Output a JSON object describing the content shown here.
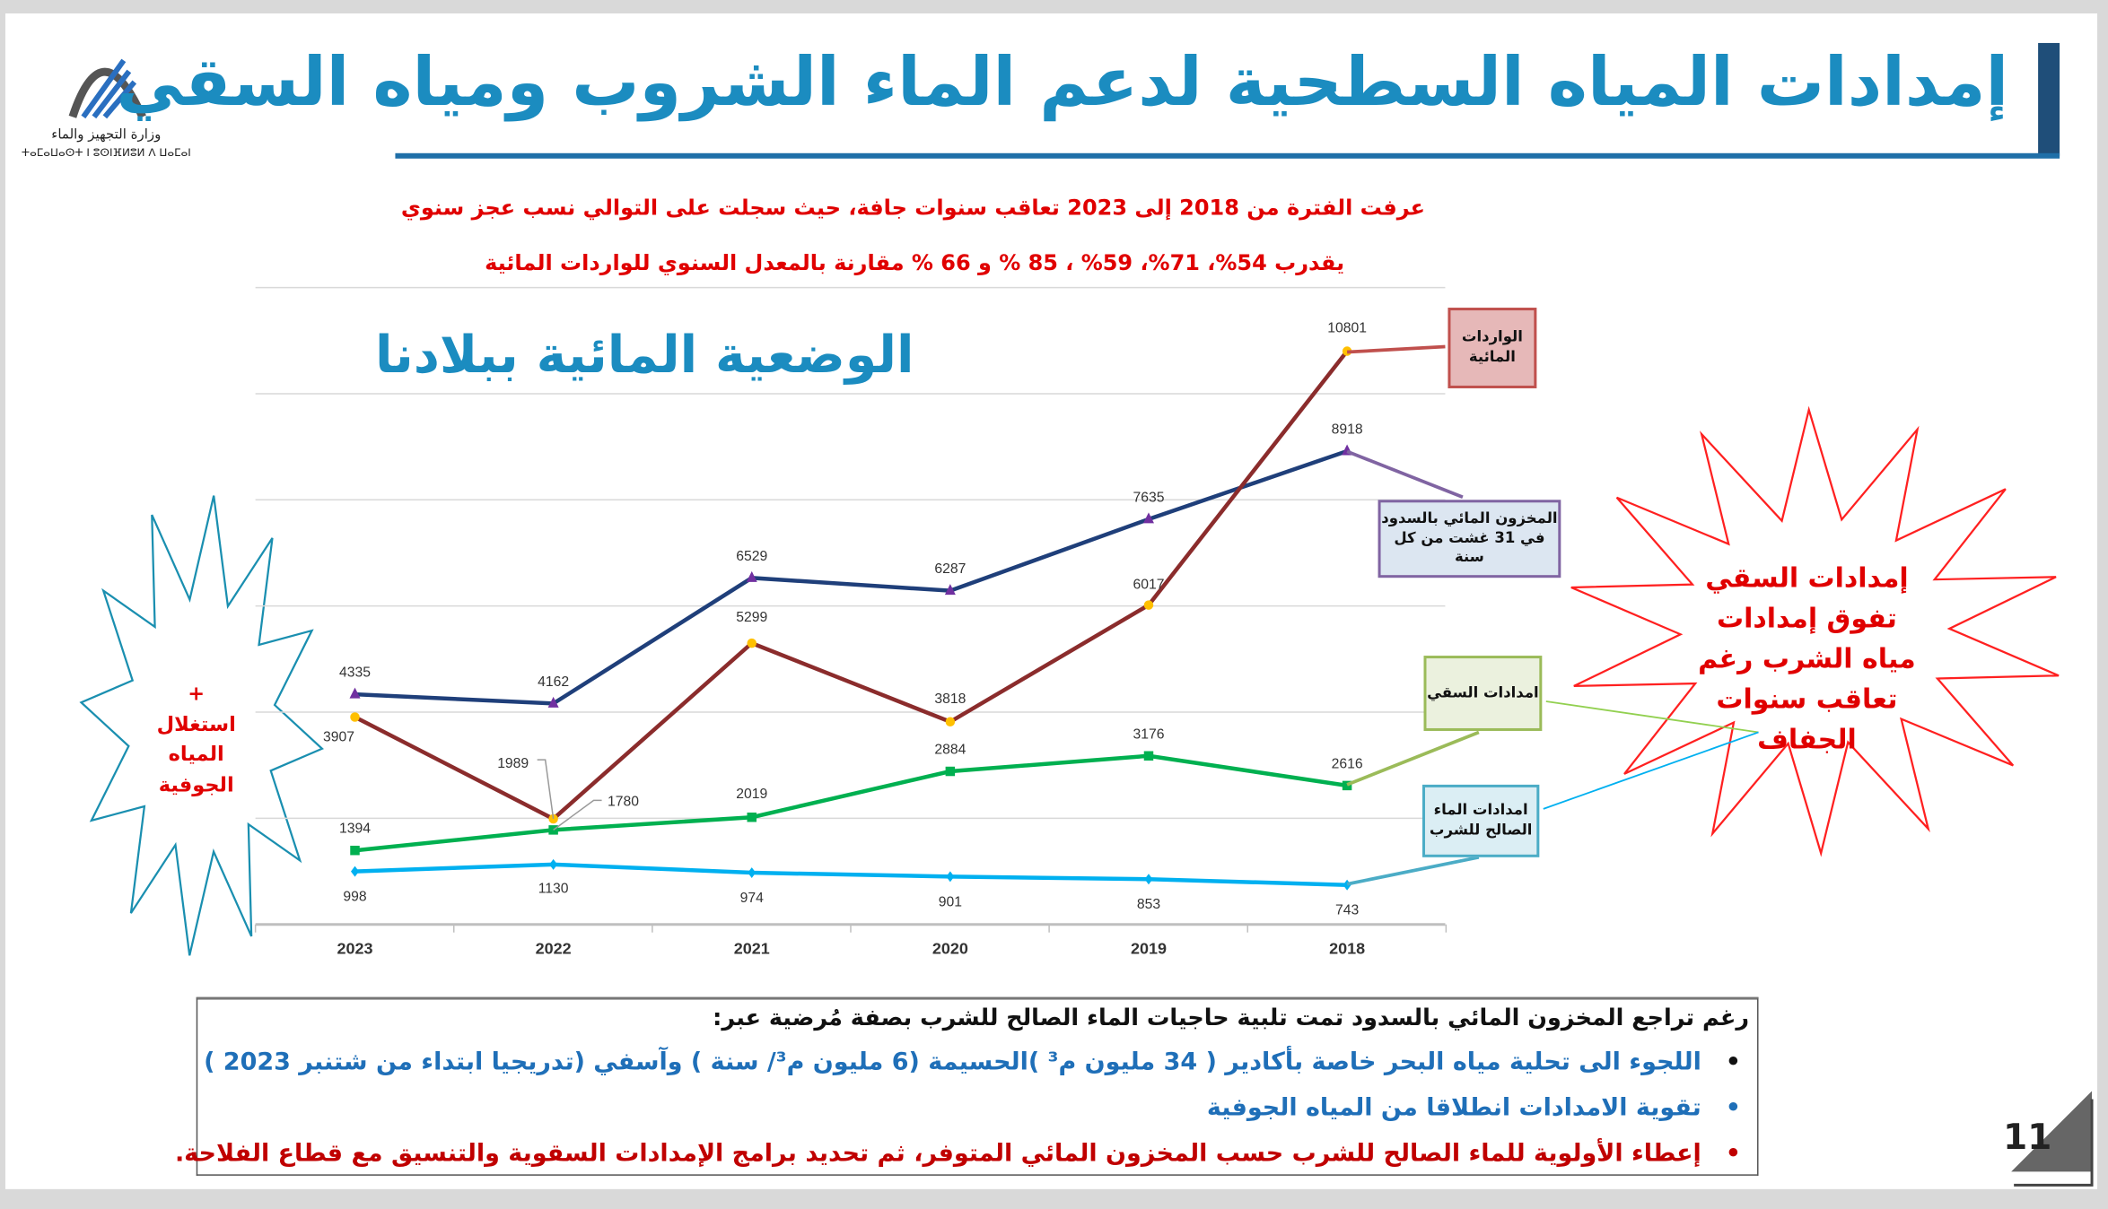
{
  "header": {
    "title": "إمدادات المياه السطحية  لدعم الماء الشروب ومياه السقي",
    "logo_text_ar": "وزارة التجهيز والماء",
    "logo_text_tifinagh": "ⵜⴰⵎⴰⵡⴰⵙⵜ ⵏ ⵓⵙⵏⴼⵍⵓⵍ ⴷ ⵡⴰⵎⴰⵏ"
  },
  "intro": {
    "line1": "عرفت الفترة من 2018 إلى 2023 تعاقب سنوات جافة، حيث سجلت على التوالي نسب عجز سنوي",
    "line2": "يقدرب 54%، 71%، 59% ، 85 % و 66 % مقارنة بالمعدل السنوي للواردات المائية"
  },
  "chart_data": {
    "type": "line",
    "title": "الوضعية المائية ببلادنا",
    "categories": [
      "2023",
      "2022",
      "2021",
      "2020",
      "2019",
      "2018"
    ],
    "ylim": [
      0,
      12000
    ],
    "grid": true,
    "series": [
      {
        "name": "المخزون المائي بالسدود في 31 غشت من كل سنة",
        "color": "#1f3f7a",
        "marker": "triangle",
        "marker_color": "#7030a0",
        "values": [
          4335,
          4162,
          6529,
          6287,
          7635,
          8918
        ]
      },
      {
        "name": "الواردات المائية",
        "color": "#8b2c2c",
        "marker": "circle",
        "marker_color": "#ffc000",
        "values": [
          3907,
          1989,
          5299,
          3818,
          6017,
          10801
        ]
      },
      {
        "name": "امدادات السقي",
        "color": "#00b050",
        "marker": "square",
        "marker_color": "#00b050",
        "values": [
          1394,
          1780,
          2019,
          2884,
          3176,
          2616
        ]
      },
      {
        "name": "امدادات الماء الصالح للشرب",
        "color": "#00b0f0",
        "marker": "diamond",
        "marker_color": "#00b0f0",
        "values": [
          998,
          1130,
          974,
          901,
          853,
          743
        ]
      }
    ]
  },
  "callouts": {
    "inflow": "الواردات المائية",
    "storage": "المخزون المائي بالسدود في 31 غشت من كل سنة",
    "irrigation": "امدادات السقي",
    "drinking": "امدادات الماء الصالح للشرب"
  },
  "bursts": {
    "left_plus": "+",
    "left": "استغلال المياه الجوفية",
    "right": "إمدادات السقي تفوق إمدادات مياه الشرب رغم تعاقب سنوات الجفاف"
  },
  "notes": {
    "heading": "رغم تراجع المخزون المائي بالسدود تمت  تلبية حاجيات الماء الصالح للشرب بصفة مُرضية عبر:",
    "bullets": [
      {
        "text": "اللجوء الى تحلية مياه البحر خاصة بأكادير ( 34 مليون م³ )الحسيمة  (6 مليون م³/ سنة ) وآسفي (تدريجيا ابتداء من شتنبر 2023 )",
        "color": "#1f6fb8"
      },
      {
        "text": "تقوية الامدادات انطلاقا من المياه الجوفية",
        "color": "#1f6fb8"
      },
      {
        "text": "إعطاء الأولوية للماء الصالح للشرب حسب المخزون المائي المتوفر، ثم تحديد برامج الإمدادات السقوية والتنسيق مع قطاع الفلاحة.",
        "color": "#c00000"
      }
    ],
    "bullet_symbol": "•"
  },
  "page_number": "11"
}
